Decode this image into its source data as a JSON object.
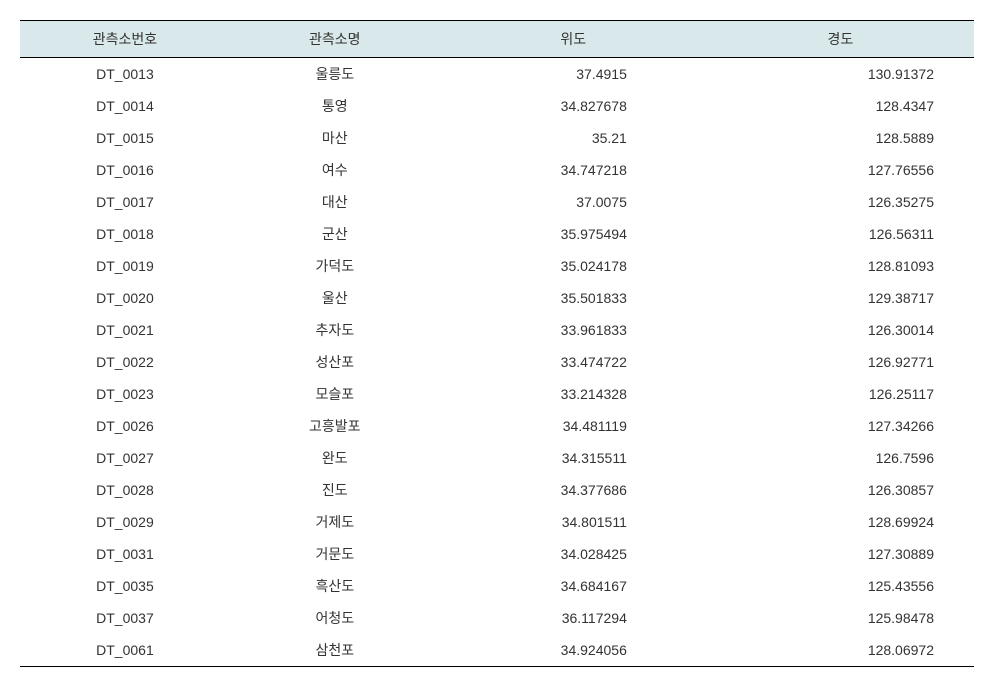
{
  "table": {
    "type": "table",
    "header_background_color": "#d9e8ea",
    "border_color": "#000000",
    "text_color": "#333333",
    "font_size": 14,
    "columns": [
      {
        "label": "관측소번호",
        "align": "center"
      },
      {
        "label": "관측소명",
        "align": "center"
      },
      {
        "label": "위도",
        "align": "right"
      },
      {
        "label": "경도",
        "align": "right"
      }
    ],
    "rows": [
      {
        "id": "DT_0013",
        "name": "울릉도",
        "lat": "37.4915",
        "lng": "130.91372"
      },
      {
        "id": "DT_0014",
        "name": "통영",
        "lat": "34.827678",
        "lng": "128.4347"
      },
      {
        "id": "DT_0015",
        "name": "마산",
        "lat": "35.21",
        "lng": "128.5889"
      },
      {
        "id": "DT_0016",
        "name": "여수",
        "lat": "34.747218",
        "lng": "127.76556"
      },
      {
        "id": "DT_0017",
        "name": "대산",
        "lat": "37.0075",
        "lng": "126.35275"
      },
      {
        "id": "DT_0018",
        "name": "군산",
        "lat": "35.975494",
        "lng": "126.56311"
      },
      {
        "id": "DT_0019",
        "name": "가덕도",
        "lat": "35.024178",
        "lng": "128.81093"
      },
      {
        "id": "DT_0020",
        "name": "울산",
        "lat": "35.501833",
        "lng": "129.38717"
      },
      {
        "id": "DT_0021",
        "name": "추자도",
        "lat": "33.961833",
        "lng": "126.30014"
      },
      {
        "id": "DT_0022",
        "name": "성산포",
        "lat": "33.474722",
        "lng": "126.92771"
      },
      {
        "id": "DT_0023",
        "name": "모슬포",
        "lat": "33.214328",
        "lng": "126.25117"
      },
      {
        "id": "DT_0026",
        "name": "고흥발포",
        "lat": "34.481119",
        "lng": "127.34266"
      },
      {
        "id": "DT_0027",
        "name": "완도",
        "lat": "34.315511",
        "lng": "126.7596"
      },
      {
        "id": "DT_0028",
        "name": "진도",
        "lat": "34.377686",
        "lng": "126.30857"
      },
      {
        "id": "DT_0029",
        "name": "거제도",
        "lat": "34.801511",
        "lng": "128.69924"
      },
      {
        "id": "DT_0031",
        "name": "거문도",
        "lat": "34.028425",
        "lng": "127.30889"
      },
      {
        "id": "DT_0035",
        "name": "흑산도",
        "lat": "34.684167",
        "lng": "125.43556"
      },
      {
        "id": "DT_0037",
        "name": "어청도",
        "lat": "36.117294",
        "lng": "125.98478"
      },
      {
        "id": "DT_0061",
        "name": "삼천포",
        "lat": "34.924056",
        "lng": "128.06972"
      }
    ]
  }
}
